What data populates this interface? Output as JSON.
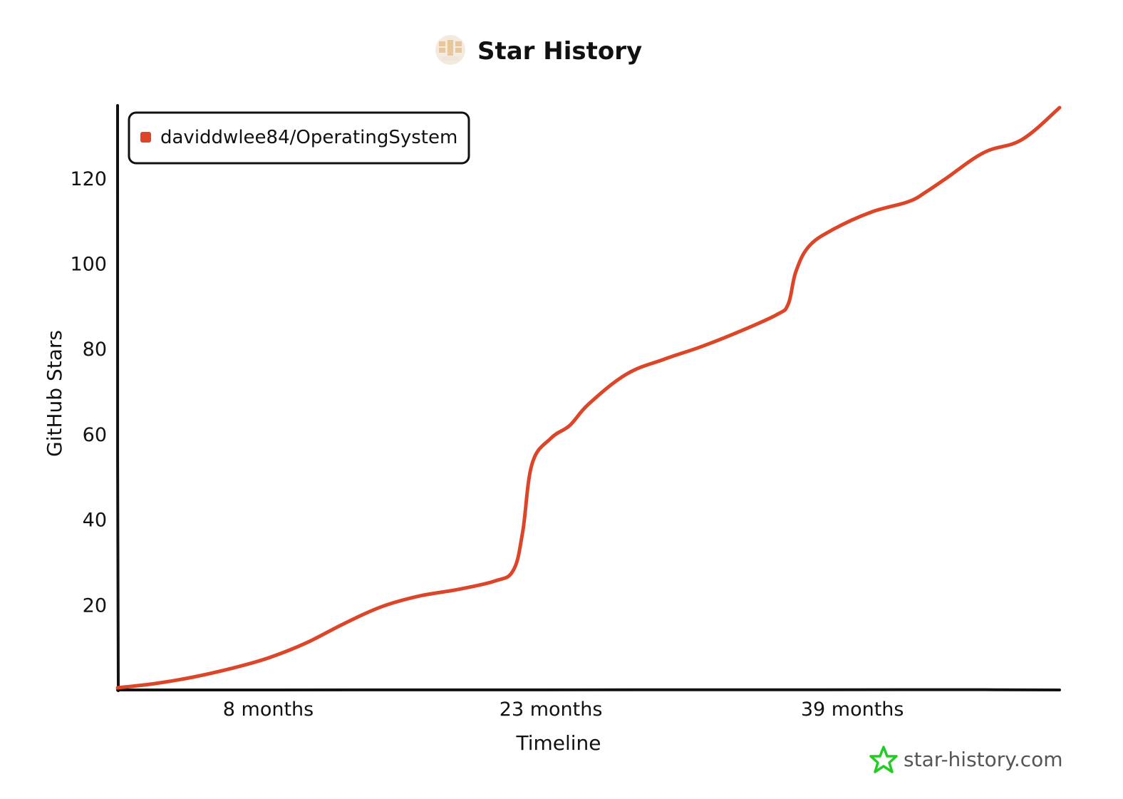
{
  "colors": {
    "series": "#dd4528",
    "axis": "#111111",
    "watermark_icon": "#22cc22",
    "logo": "#e8c79a"
  },
  "header": {
    "title": "Star History",
    "logo_icon": "star-history-logo-icon"
  },
  "watermark": {
    "text": "star-history.com",
    "icon": "green-star-icon"
  },
  "chart_data": {
    "type": "line",
    "title": "Star History",
    "xlabel": "Timeline",
    "ylabel": "GitHub Stars",
    "xlim": [
      0,
      50
    ],
    "ylim": [
      0,
      137
    ],
    "x_unit": "months",
    "x_ticks": [
      {
        "value": 8,
        "label": "8 months"
      },
      {
        "value": 23,
        "label": "23 months"
      },
      {
        "value": 39,
        "label": "39 months"
      }
    ],
    "y_ticks": [
      {
        "value": 20,
        "label": "20"
      },
      {
        "value": 40,
        "label": "40"
      },
      {
        "value": 60,
        "label": "60"
      },
      {
        "value": 80,
        "label": "80"
      },
      {
        "value": 100,
        "label": "100"
      },
      {
        "value": 120,
        "label": "120"
      }
    ],
    "grid": false,
    "legend_position": "top-left",
    "series": [
      {
        "name": "daviddwlee84/OperatingSystem",
        "points": [
          [
            0,
            0.5
          ],
          [
            2,
            1.5
          ],
          [
            4,
            3
          ],
          [
            6,
            5
          ],
          [
            8,
            7.5
          ],
          [
            10,
            11
          ],
          [
            12,
            15.5
          ],
          [
            14,
            19.5
          ],
          [
            16,
            22
          ],
          [
            18,
            23.5
          ],
          [
            20,
            25.5
          ],
          [
            21,
            28
          ],
          [
            21.5,
            37
          ],
          [
            22,
            53
          ],
          [
            23,
            59
          ],
          [
            24,
            62
          ],
          [
            25,
            67
          ],
          [
            27,
            74
          ],
          [
            29,
            77.5
          ],
          [
            31,
            80.5
          ],
          [
            33,
            84
          ],
          [
            35,
            88
          ],
          [
            35.6,
            90.5
          ],
          [
            36,
            98
          ],
          [
            36.7,
            104
          ],
          [
            38,
            108
          ],
          [
            40,
            112
          ],
          [
            42,
            114.5
          ],
          [
            43,
            117
          ],
          [
            44,
            120
          ],
          [
            46,
            126
          ],
          [
            48,
            129
          ],
          [
            50,
            136.5
          ]
        ]
      }
    ]
  }
}
